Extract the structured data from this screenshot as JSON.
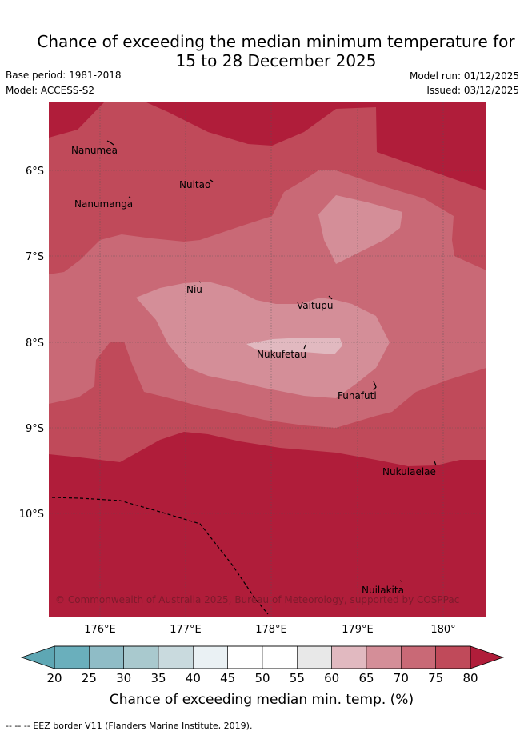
{
  "title": {
    "line1": "Chance of exceeding the median minimum temperature for",
    "line2": "15 to 28 December 2025"
  },
  "meta": {
    "base_period": "Base period: 1981-2018",
    "model": "Model: ACCESS-S2",
    "model_run": "Model run: 01/12/2025",
    "issued": "Issued: 03/12/2025"
  },
  "map": {
    "x_ticks": [
      "176°E",
      "177°E",
      "178°E",
      "179°E",
      "180°"
    ],
    "y_ticks": [
      "6°S",
      "7°S",
      "8°S",
      "9°S",
      "10°S"
    ],
    "places": [
      "Nanumea",
      "Nuitao",
      "Nanumanga",
      "Niu",
      "Vaitupu",
      "Nukufetau",
      "Funafuti",
      "Nukulaelae",
      "Nuilakita"
    ],
    "copyright": "© Commonwealth of Australia 2025, Bureau of Meteorology, supported by COSPPac"
  },
  "colorbar": {
    "ticks": [
      "20",
      "25",
      "30",
      "35",
      "40",
      "45",
      "50",
      "55",
      "60",
      "65",
      "70",
      "75",
      "80"
    ],
    "colors": [
      "#6aafbc",
      "#8fbcc6",
      "#a9c9ce",
      "#c9dade",
      "#eaf1f4",
      "#ffffff",
      "#ffffff",
      "#e8e8e8",
      "#e1b9c0",
      "#d48e98",
      "#c96976",
      "#c04a5a",
      "#b01d3a"
    ],
    "label": "Chance of exceeding median min. temp. (%)"
  },
  "footer": "--  --  -- EEZ border V11 (Flanders Marine Institute, 2019)."
}
